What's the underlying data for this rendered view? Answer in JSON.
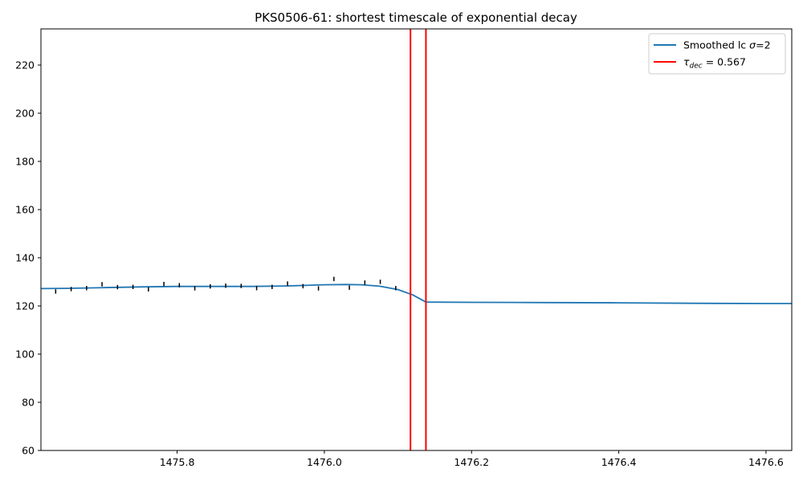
{
  "chart_data": {
    "type": "line",
    "title": "PKS0506-61: shortest timescale of exponential decay",
    "xlabel": "",
    "ylabel": "",
    "xlim": [
      1475.615,
      1476.635
    ],
    "ylim": [
      60,
      235
    ],
    "xticks": [
      1475.8,
      1476.0,
      1476.2,
      1476.4,
      1476.6
    ],
    "xtick_labels": [
      "1475.8",
      "1476.0",
      "1476.2",
      "1476.4",
      "1476.6"
    ],
    "yticks": [
      60,
      80,
      100,
      120,
      140,
      160,
      180,
      200,
      220
    ],
    "ytick_labels": [
      "60",
      "80",
      "100",
      "120",
      "140",
      "160",
      "180",
      "200",
      "220"
    ],
    "grid": false,
    "legend_position": "top-right",
    "series": [
      {
        "name": "Smoothed lc σ=2",
        "kind": "line",
        "color": "#1f77b4",
        "x": [
          1475.615,
          1475.65,
          1475.7,
          1475.75,
          1475.8,
          1475.85,
          1475.9,
          1475.95,
          1476.0,
          1476.03,
          1476.05,
          1476.075,
          1476.1,
          1476.12,
          1476.138,
          1476.2,
          1476.3,
          1476.4,
          1476.5,
          1476.6,
          1476.635
        ],
        "y": [
          127.2,
          127.3,
          127.6,
          127.9,
          128.1,
          128.1,
          128.1,
          128.3,
          128.8,
          128.9,
          128.8,
          128.2,
          126.8,
          124.6,
          121.6,
          121.5,
          121.4,
          121.3,
          121.1,
          121.0,
          121.0
        ]
      },
      {
        "name": "τ_dec = 0.567",
        "kind": "vlines",
        "color": "#ff0000",
        "x": [
          1476.117,
          1476.138
        ]
      },
      {
        "name": "",
        "kind": "errorbars",
        "color": "#000000",
        "points": [
          {
            "x": 1475.635,
            "y": 126.0,
            "err": 0.9
          },
          {
            "x": 1475.656,
            "y": 127.0,
            "err": 0.9
          },
          {
            "x": 1475.677,
            "y": 127.4,
            "err": 0.9
          },
          {
            "x": 1475.698,
            "y": 129.0,
            "err": 0.9
          },
          {
            "x": 1475.719,
            "y": 127.8,
            "err": 0.9
          },
          {
            "x": 1475.74,
            "y": 127.9,
            "err": 0.9
          },
          {
            "x": 1475.761,
            "y": 126.9,
            "err": 0.9
          },
          {
            "x": 1475.782,
            "y": 129.1,
            "err": 0.9
          },
          {
            "x": 1475.803,
            "y": 128.6,
            "err": 0.9
          },
          {
            "x": 1475.824,
            "y": 127.3,
            "err": 0.9
          },
          {
            "x": 1475.845,
            "y": 128.1,
            "err": 0.9
          },
          {
            "x": 1475.866,
            "y": 128.4,
            "err": 0.9
          },
          {
            "x": 1475.887,
            "y": 128.3,
            "err": 0.9
          },
          {
            "x": 1475.908,
            "y": 127.4,
            "err": 0.9
          },
          {
            "x": 1475.929,
            "y": 127.9,
            "err": 0.9
          },
          {
            "x": 1475.95,
            "y": 129.3,
            "err": 0.9
          },
          {
            "x": 1475.971,
            "y": 128.2,
            "err": 0.9
          },
          {
            "x": 1475.992,
            "y": 127.3,
            "err": 0.9
          },
          {
            "x": 1476.013,
            "y": 131.2,
            "err": 0.9
          },
          {
            "x": 1476.034,
            "y": 127.6,
            "err": 0.9
          },
          {
            "x": 1476.055,
            "y": 129.7,
            "err": 0.9
          },
          {
            "x": 1476.076,
            "y": 130.0,
            "err": 0.9
          },
          {
            "x": 1476.097,
            "y": 127.4,
            "err": 0.9
          }
        ]
      }
    ],
    "legend": [
      {
        "label_main": "Smoothed lc ",
        "label_sym": "σ",
        "label_sub": "",
        "label_tail": "=2",
        "color": "#1f77b4"
      },
      {
        "label_main": "",
        "label_sym": "τ",
        "label_sub": "dec",
        "label_tail": " = 0.567",
        "color": "#ff0000"
      }
    ]
  }
}
